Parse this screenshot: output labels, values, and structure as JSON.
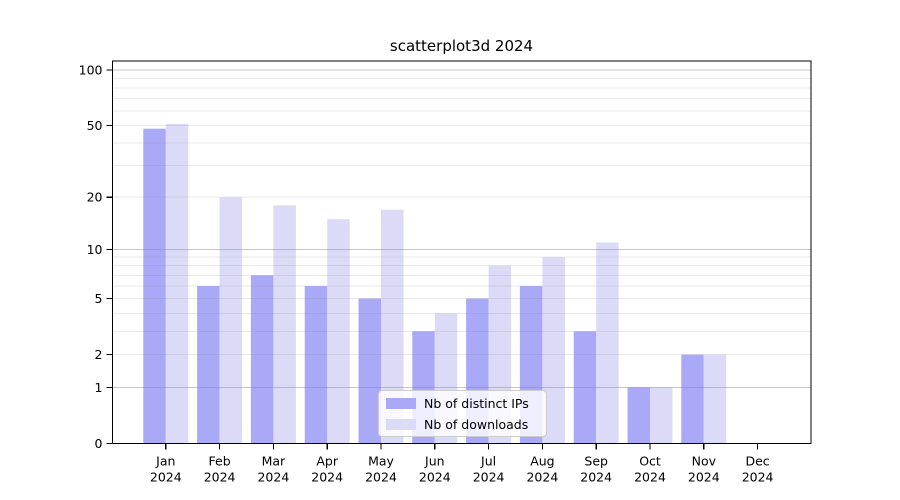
{
  "chart_data": {
    "type": "bar",
    "title": "scatterplot3d 2024",
    "categories": [
      "Jan",
      "Feb",
      "Mar",
      "Apr",
      "May",
      "Jun",
      "Jul",
      "Aug",
      "Sep",
      "Oct",
      "Nov",
      "Dec"
    ],
    "category_year": "2024",
    "series": [
      {
        "name": "Nb of distinct IPs",
        "color": "#a9a9f8",
        "values": [
          48,
          6,
          7,
          6,
          5,
          3,
          5,
          6,
          3,
          1,
          2,
          0
        ]
      },
      {
        "name": "Nb of downloads",
        "color": "#dbdbf8",
        "values": [
          51,
          20,
          18,
          15,
          17,
          4,
          8,
          9,
          11,
          1,
          2,
          0
        ]
      }
    ],
    "yscale": "log1p",
    "ylim": [
      0,
      113
    ],
    "y_ticks_labeled": [
      100,
      50,
      20,
      10,
      5,
      2,
      1,
      0
    ],
    "gridlines_major": [
      1,
      10,
      100
    ],
    "gridlines_minor": [
      2,
      3,
      4,
      5,
      6,
      7,
      8,
      9,
      20,
      30,
      40,
      50,
      60,
      70,
      80,
      90
    ],
    "grid": "on",
    "legend_position": "lower center",
    "colors": {
      "spine": "#000000",
      "gridline_major": "rgba(130,130,130,0.45)",
      "gridline_minor": "rgba(130,130,130,0.17)"
    }
  }
}
